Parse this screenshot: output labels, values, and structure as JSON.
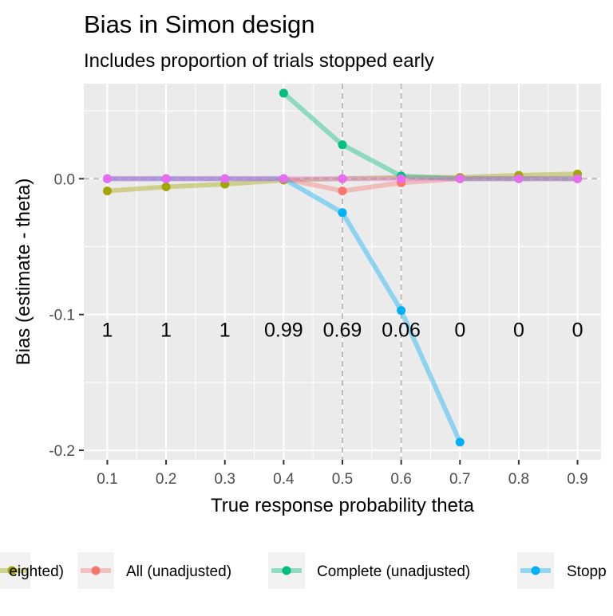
{
  "chart_data": {
    "type": "line",
    "title": "Bias in Simon design",
    "subtitle": "Includes proportion of trials stopped early",
    "xlabel": "True response probability theta",
    "ylabel": "Bias (estimate - theta)",
    "x": [
      0.1,
      0.2,
      0.3,
      0.4,
      0.5,
      0.6,
      0.7,
      0.8,
      0.9
    ],
    "x_tick_labels": [
      "0.1",
      "0.2",
      "0.3",
      "0.4",
      "0.5",
      "0.6",
      "0.7",
      "0.8",
      "0.9"
    ],
    "y_ticks": [
      0.0,
      -0.1,
      -0.2
    ],
    "y_tick_labels": [
      "0.0",
      "-0.1",
      "-0.2"
    ],
    "xlim": [
      0.06,
      0.94
    ],
    "ylim": [
      -0.207,
      0.07
    ],
    "grid": true,
    "legend_position": "bottom",
    "reference_lines": {
      "horizontal_dashed_y": 0.0,
      "vertical_dashed_x": [
        0.5,
        0.6
      ]
    },
    "annotations": {
      "y": -0.111,
      "labels": [
        "1",
        "1",
        "1",
        "0.99",
        "0.69",
        "0.06",
        "0",
        "0",
        "0"
      ]
    },
    "series": [
      {
        "name": "eighted)",
        "color": "#a3a500",
        "values": [
          -0.009,
          -0.006,
          -0.004,
          -0.001,
          0.0,
          0.001,
          0.001,
          0.0025,
          0.0035
        ]
      },
      {
        "name": "All (unadjusted)",
        "color": "#f8766d",
        "values": [
          0.0,
          0.0,
          0.0,
          0.0,
          -0.009,
          -0.003,
          0.0,
          0.0,
          0.0
        ]
      },
      {
        "name": "Complete (unadjusted)",
        "color": "#00bf7d",
        "values": [
          null,
          null,
          null,
          0.063,
          0.025,
          0.002,
          0.0,
          0.0,
          0.0
        ]
      },
      {
        "name": "Stopp",
        "color": "#00b0f6",
        "values": [
          0.0,
          0.0,
          0.0,
          0.0,
          -0.025,
          -0.097,
          -0.194,
          null,
          null
        ]
      },
      {
        "name": "",
        "color": "#e76bf3",
        "values": [
          0.0,
          0.0,
          0.0,
          0.0,
          0.0,
          0.0,
          0.0,
          0.0,
          0.0
        ]
      }
    ]
  }
}
